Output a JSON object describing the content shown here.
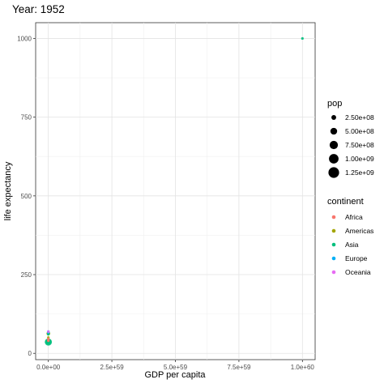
{
  "chart_data": {
    "type": "scatter",
    "title": "Year: 1952",
    "xlabel": "GDP per capita",
    "ylabel": "life expectancy",
    "xlim": [
      -5e+58,
      1.05e+60
    ],
    "ylim": [
      -20,
      1050
    ],
    "x_ticks": [
      {
        "value": 0,
        "label": "0.0e+00"
      },
      {
        "value": 2.5e+59,
        "label": "2.5e+59"
      },
      {
        "value": 5e+59,
        "label": "5.0e+59"
      },
      {
        "value": 7.5e+59,
        "label": "7.5e+59"
      },
      {
        "value": 1e+60,
        "label": "1.0e+60"
      }
    ],
    "y_ticks": [
      {
        "value": 0,
        "label": "0"
      },
      {
        "value": 250,
        "label": "250"
      },
      {
        "value": 500,
        "label": "500"
      },
      {
        "value": 750,
        "label": "750"
      },
      {
        "value": 1000,
        "label": "1000"
      }
    ],
    "grid": true,
    "legend_position": "right",
    "size_legend": {
      "title": "pop",
      "entries": [
        {
          "value": 250000000.0,
          "label": "2.50e+08"
        },
        {
          "value": 500000000.0,
          "label": "5.00e+08"
        },
        {
          "value": 750000000.0,
          "label": "7.50e+08"
        },
        {
          "value": 1000000000.0,
          "label": "1.00e+09"
        },
        {
          "value": 1250000000.0,
          "label": "1.25e+09"
        }
      ]
    },
    "color_legend": {
      "title": "continent",
      "entries": [
        {
          "name": "Africa",
          "color": "#F8766D"
        },
        {
          "name": "Americas",
          "color": "#A3A500"
        },
        {
          "name": "Asia",
          "color": "#00BF7D"
        },
        {
          "name": "Europe",
          "color": "#00B0F6"
        },
        {
          "name": "Oceania",
          "color": "#E76BF3"
        }
      ]
    },
    "points": [
      {
        "x": 1e+60,
        "y": 1000,
        "pop": 5000000.0,
        "continent": "Asia"
      },
      {
        "x": 0,
        "y": 36,
        "pop": 556000000.0,
        "continent": "Asia"
      },
      {
        "x": 0,
        "y": 37,
        "pop": 372000000.0,
        "continent": "Asia"
      },
      {
        "x": 0,
        "y": 38,
        "pop": 82000000.0,
        "continent": "Asia"
      },
      {
        "x": 0,
        "y": 40,
        "pop": 30000000.0,
        "continent": "Africa"
      },
      {
        "x": 0,
        "y": 43,
        "pop": 26000000.0,
        "continent": "Africa"
      },
      {
        "x": 0,
        "y": 41,
        "pop": 50000000.0,
        "continent": "Americas"
      },
      {
        "x": 0,
        "y": 46,
        "pop": 20000000.0,
        "continent": "Africa"
      },
      {
        "x": 0,
        "y": 50,
        "pop": 56000000.0,
        "continent": "Americas"
      },
      {
        "x": 0,
        "y": 63,
        "pop": 157000000.0,
        "continent": "Americas"
      },
      {
        "x": 0,
        "y": 66,
        "pop": 69000000.0,
        "continent": "Europe"
      },
      {
        "x": 0,
        "y": 69,
        "pop": 42000000.0,
        "continent": "Europe"
      },
      {
        "x": 0,
        "y": 61,
        "pop": 86000000.0,
        "continent": "Asia"
      },
      {
        "x": 0,
        "y": 69,
        "pop": 8700000.0,
        "continent": "Oceania"
      }
    ]
  }
}
